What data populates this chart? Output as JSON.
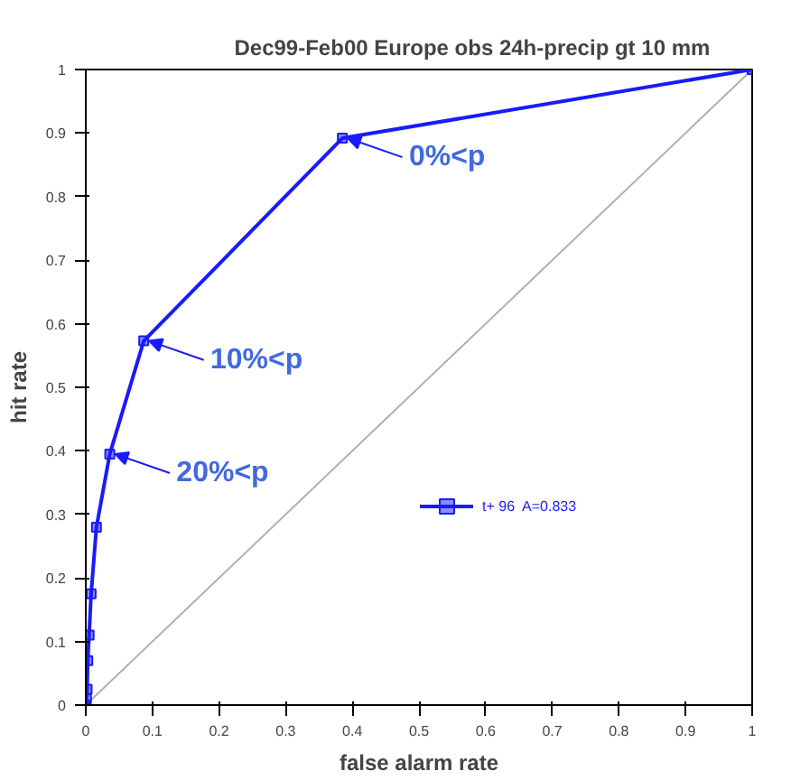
{
  "chart_data": {
    "type": "line",
    "title": "Dec99-Feb00     Europe  obs   24h-precip gt 10 mm",
    "xlabel": "false alarm rate",
    "ylabel": "hit rate",
    "xlim": [
      0,
      1
    ],
    "ylim": [
      0,
      1
    ],
    "xticks": [
      0,
      0.1,
      0.2,
      0.3,
      0.4,
      0.5,
      0.6,
      0.7,
      0.8,
      0.9,
      1
    ],
    "yticks": [
      0,
      0.1,
      0.2,
      0.3,
      0.4,
      0.5,
      0.6,
      0.7,
      0.8,
      0.9,
      1
    ],
    "grid": false,
    "legend": "right",
    "marker": "square",
    "line_style": "solid",
    "series": [
      {
        "name": "t+ 96  A=0.833",
        "color": "#1a1aff",
        "x": [
          0,
          0.001,
          0.002,
          0.003,
          0.005,
          0.008,
          0.016,
          0.036,
          0.087,
          0.385,
          1
        ],
        "values": [
          0,
          0.01,
          0.025,
          0.07,
          0.11,
          0.175,
          0.28,
          0.395,
          0.573,
          0.892,
          1
        ]
      },
      {
        "color": "#b0b0b0",
        "x": [
          0,
          1
        ],
        "values": [
          0,
          1
        ],
        "marker": "none"
      }
    ],
    "annotations": [
      {
        "text": "0%<p",
        "x": 0.385,
        "y": 0.892
      },
      {
        "text": "10%<p",
        "x": 0.087,
        "y": 0.573
      },
      {
        "text": "20%<p",
        "x": 0.036,
        "y": 0.395
      }
    ]
  }
}
